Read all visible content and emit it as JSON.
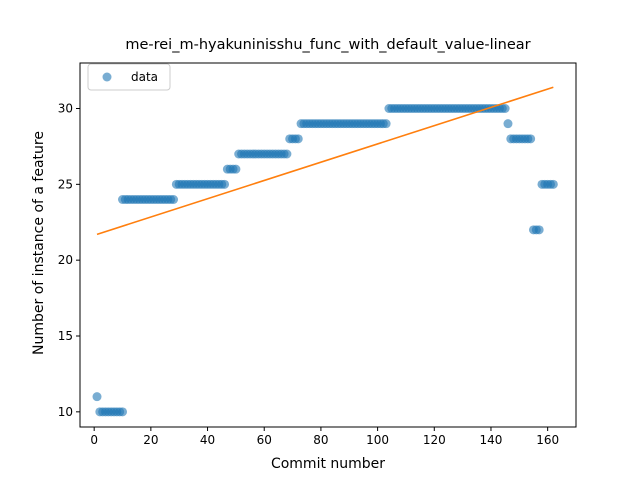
{
  "chart_data": {
    "type": "scatter",
    "title": "me-rei_m-hyakuninisshu_func_with_default_value-linear",
    "xlabel": "Commit number",
    "ylabel": "Number of instance of a feature",
    "xlim": [
      -5,
      170
    ],
    "ylim": [
      9,
      33
    ],
    "xticks": [
      0,
      20,
      40,
      60,
      80,
      100,
      120,
      140,
      160
    ],
    "yticks": [
      10,
      15,
      20,
      25,
      30
    ],
    "grid": false,
    "legend": {
      "placement": "top-left",
      "entries": [
        "data"
      ]
    },
    "colors": {
      "points": "#1f77b4",
      "fit_line": "#ff7f0e"
    },
    "series": [
      {
        "name": "data",
        "kind": "scatter",
        "segments": [
          {
            "x_from": 1,
            "x_to": 1,
            "y": 11
          },
          {
            "x_from": 2,
            "x_to": 10,
            "y": 10
          },
          {
            "x_from": 10,
            "x_to": 28,
            "y": 24
          },
          {
            "x_from": 29,
            "x_to": 46,
            "y": 25
          },
          {
            "x_from": 47,
            "x_to": 50,
            "y": 26
          },
          {
            "x_from": 51,
            "x_to": 68,
            "y": 27
          },
          {
            "x_from": 69,
            "x_to": 72,
            "y": 28
          },
          {
            "x_from": 73,
            "x_to": 103,
            "y": 29
          },
          {
            "x_from": 104,
            "x_to": 145,
            "y": 30
          },
          {
            "x_from": 146,
            "x_to": 146,
            "y": 29
          },
          {
            "x_from": 147,
            "x_to": 154,
            "y": 28
          },
          {
            "x_from": 155,
            "x_to": 157,
            "y": 22
          },
          {
            "x_from": 158,
            "x_to": 162,
            "y": 25
          }
        ]
      },
      {
        "kind": "line",
        "x": [
          1,
          162
        ],
        "y": [
          21.7,
          31.4
        ]
      }
    ]
  }
}
